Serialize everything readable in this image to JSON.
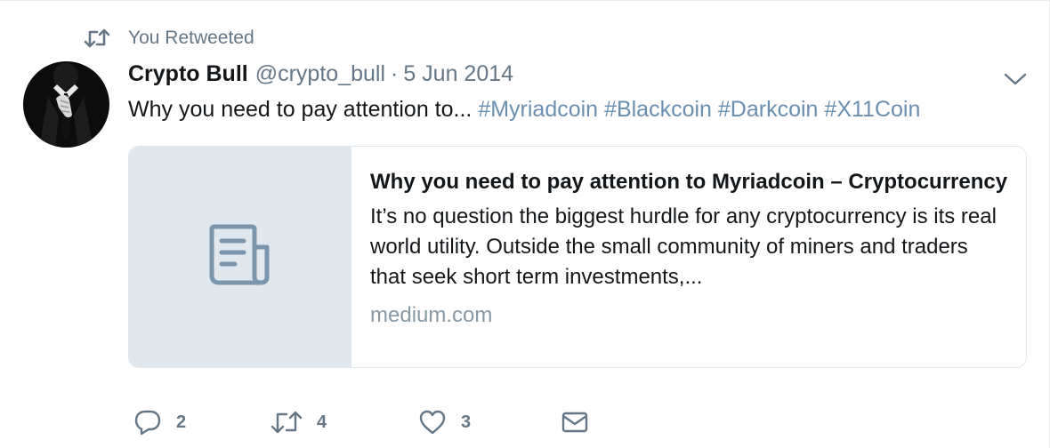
{
  "context": {
    "icon": "retweet-icon",
    "label": "You Retweeted"
  },
  "author": {
    "avatar_icon": "anonymous-suit-avatar",
    "fullname": "Crypto Bull",
    "username": "@crypto_bull",
    "separator": "·",
    "timestamp": "5 Jun 2014"
  },
  "menu": {
    "icon": "chevron-down-icon"
  },
  "tweet": {
    "text": "Why you need to pay attention to...",
    "hashtags": [
      "#Myriadcoin",
      "#Blackcoin",
      "#Darkcoin",
      "#X11Coin"
    ]
  },
  "card": {
    "thumb_icon": "document-icon",
    "title": "Why you need to pay attention to Myriadcoin – Cryptocurrency",
    "description": "It’s no question the biggest hurdle for any cryptocurrency is its real world utility. Outside the small community of miners and traders that seek short term investments,...",
    "domain": "medium.com"
  },
  "actions": {
    "reply": {
      "icon": "reply-icon",
      "count": "2"
    },
    "retweet": {
      "icon": "retweet-icon",
      "count": "4"
    },
    "like": {
      "icon": "heart-icon",
      "count": "3"
    },
    "message": {
      "icon": "envelope-icon"
    }
  },
  "colors": {
    "hashtag": "#6b8fb0",
    "secondary_text": "#657786",
    "card_thumb_bg": "#e1e8ed",
    "card_icon": "#7b95ad"
  }
}
